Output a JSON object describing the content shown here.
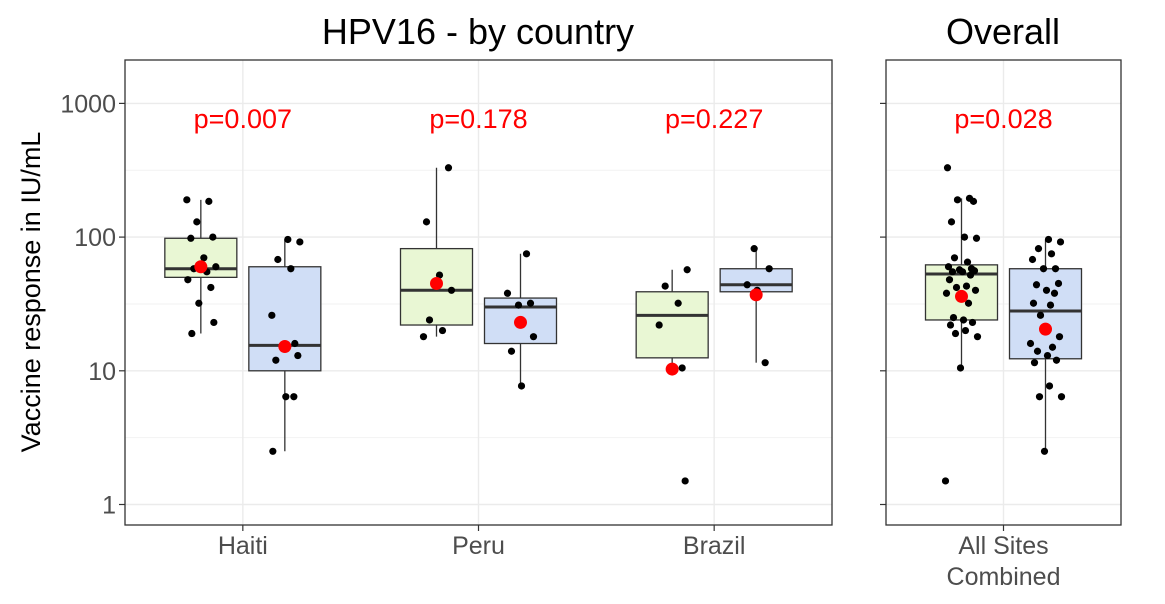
{
  "chart_data": [
    {
      "type": "box",
      "title": "HPV16 - by country",
      "ylabel": "Vaccine response in IU/mL",
      "yscale": "log10",
      "ylim": [
        0.7,
        2000
      ],
      "yticks": [
        1,
        10,
        100,
        1000
      ],
      "ytick_labels": [
        "1",
        "10",
        "100",
        "1000"
      ],
      "grid": true,
      "legend": "none",
      "categories": [
        "Haiti",
        "Peru",
        "Brazil"
      ],
      "annotations": [
        "p=0.007",
        "p=0.178",
        "p=0.227"
      ],
      "colors": {
        "series_a": "#e9f7d4",
        "series_b": "#d0def6",
        "mean_marker": "#ff0000",
        "annotation": "#ff0000"
      },
      "groups": [
        {
          "category": "Haiti",
          "p_value": "p=0.007",
          "boxes": [
            {
              "q1": 50,
              "median": 58,
              "q3": 98,
              "whisker_low": 19,
              "whisker_high": 190,
              "mean": 60,
              "points": [
                190,
                185,
                130,
                100,
                98,
                70,
                60,
                58,
                55,
                48,
                42,
                32,
                23,
                19
              ]
            },
            {
              "q1": 10,
              "median": 15.5,
              "q3": 60,
              "whisker_low": 2.5,
              "whisker_high": 96,
              "mean": 15.2,
              "points": [
                96,
                92,
                68,
                58,
                26,
                16,
                15,
                13,
                12,
                6.4,
                6.4,
                2.5
              ]
            }
          ]
        },
        {
          "category": "Peru",
          "p_value": "p=0.178",
          "boxes": [
            {
              "q1": 22,
              "median": 40,
              "q3": 82,
              "whisker_low": 18,
              "whisker_high": 330,
              "mean": 45,
              "points": [
                330,
                130,
                52,
                40,
                24,
                20,
                18
              ]
            },
            {
              "q1": 16,
              "median": 30,
              "q3": 35,
              "whisker_low": 7.7,
              "whisker_high": 75,
              "mean": 23,
              "points": [
                75,
                38,
                32,
                31,
                18,
                14,
                7.7
              ]
            }
          ]
        },
        {
          "category": "Brazil",
          "p_value": "p=0.227",
          "boxes": [
            {
              "q1": 12.5,
              "median": 26,
              "q3": 39,
              "whisker_low": 10.5,
              "whisker_high": 57,
              "mean": 10.3,
              "points": [
                57,
                43,
                32,
                22,
                10.5,
                10.5,
                1.5
              ]
            },
            {
              "q1": 39,
              "median": 44,
              "q3": 58,
              "whisker_low": 11.5,
              "whisker_high": 82,
              "mean": 37,
              "points": [
                82,
                58,
                44,
                40,
                11.5
              ]
            }
          ]
        }
      ]
    },
    {
      "type": "box",
      "title": "Overall",
      "yscale": "log10",
      "ylim": [
        0.7,
        2000
      ],
      "grid": true,
      "legend": "none",
      "categories": [
        "All Sites Combined"
      ],
      "category_lines": [
        "All Sites",
        "Combined"
      ],
      "annotations": [
        "p=0.028"
      ],
      "groups": [
        {
          "category": "All Sites Combined",
          "p_value": "p=0.028",
          "boxes": [
            {
              "q1": 24,
              "median": 53,
              "q3": 62,
              "whisker_low": 10.5,
              "whisker_high": 195,
              "mean": 36,
              "points": [
                330,
                195,
                190,
                185,
                130,
                100,
                98,
                70,
                65,
                60,
                58,
                57,
                56,
                55,
                55,
                52,
                48,
                43,
                42,
                40,
                38,
                32,
                25,
                24,
                23,
                22,
                20,
                19,
                18,
                10.5,
                1.5
              ]
            },
            {
              "q1": 12.3,
              "median": 28,
              "q3": 58,
              "whisker_low": 2.5,
              "whisker_high": 96,
              "mean": 20.5,
              "points": [
                96,
                92,
                82,
                75,
                68,
                58,
                58,
                45,
                44,
                40,
                38,
                32,
                31,
                26,
                18,
                16,
                15,
                14,
                13,
                12,
                11.5,
                7.7,
                6.4,
                6.4,
                2.5
              ]
            }
          ]
        }
      ]
    }
  ]
}
